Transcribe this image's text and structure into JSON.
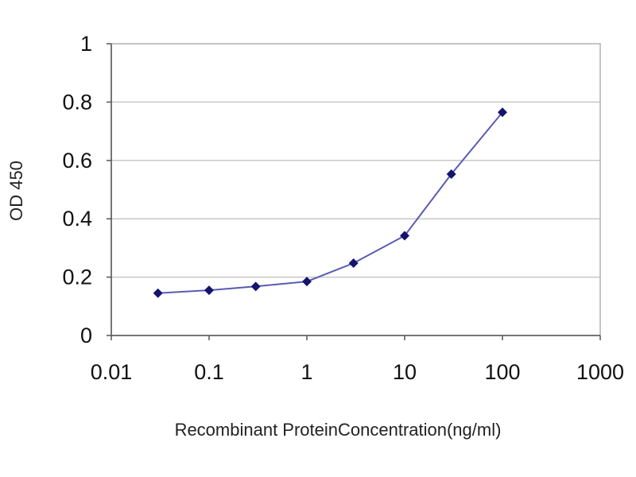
{
  "chart_data": {
    "type": "line",
    "title": "",
    "xlabel": "Recombinant ProteinConcentration(ng/ml)",
    "ylabel": "OD 450",
    "x_scale": "log",
    "xlim": [
      0.01,
      1000
    ],
    "ylim": [
      0,
      1
    ],
    "x_ticks": [
      "0.01",
      "0.1",
      "1",
      "10",
      "100",
      "1000"
    ],
    "y_ticks": [
      "0",
      "0.2",
      "0.4",
      "0.6",
      "0.8",
      "1"
    ],
    "grid": "horizontal",
    "series": [
      {
        "x": [
          0.03,
          0.1,
          0.3,
          1,
          3,
          10,
          30,
          100
        ],
        "y": [
          0.145,
          0.155,
          0.168,
          0.185,
          0.248,
          0.342,
          0.553,
          0.765
        ]
      }
    ],
    "colors": {
      "line": "#5a5ab4",
      "marker": "#14146e",
      "grid": "#c8c8c8",
      "plot_border": "#b0b0b0",
      "tick_mark": "#555555"
    }
  }
}
